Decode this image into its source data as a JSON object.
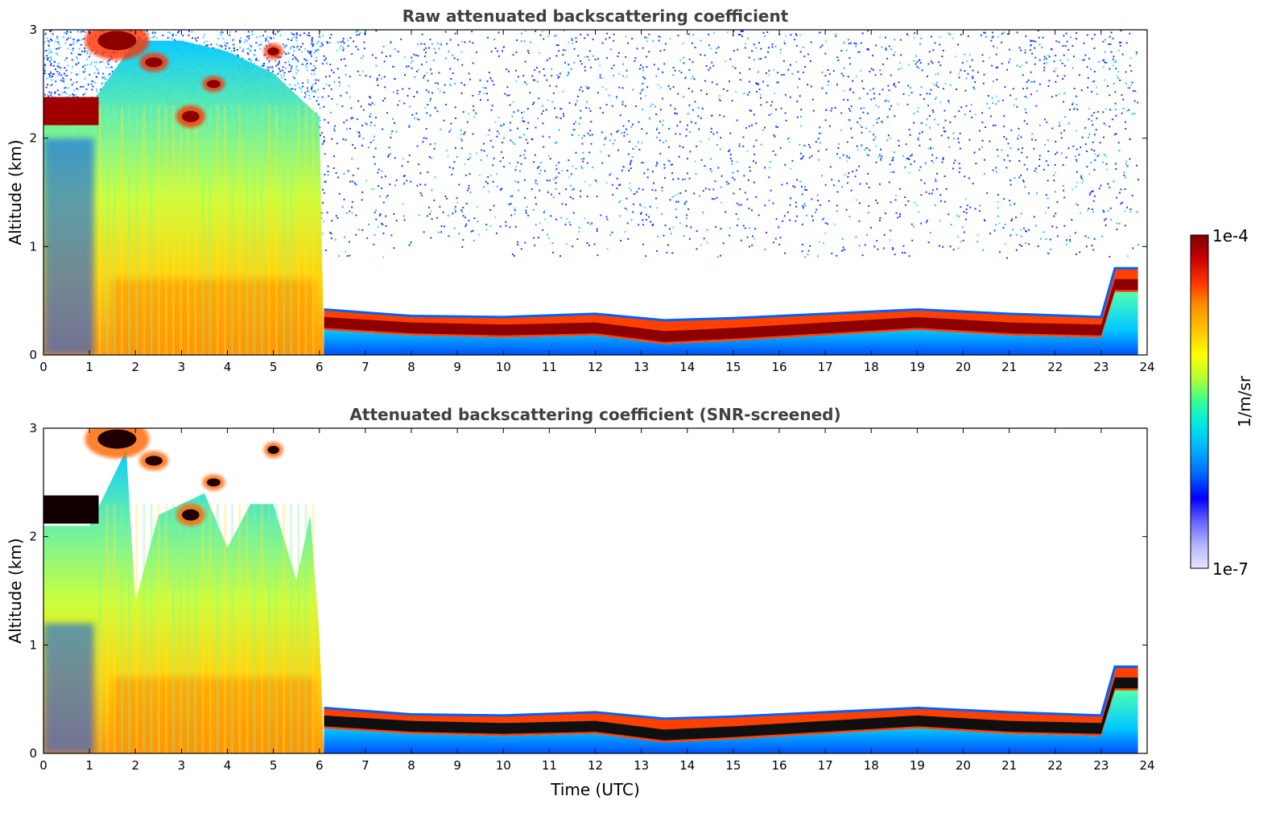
{
  "chart_data": [
    {
      "type": "heatmap",
      "title": "Raw attenuated backscattering coefficient",
      "xlabel": "",
      "ylabel": "Altitude (km)",
      "xlim": [
        0,
        24
      ],
      "ylim": [
        0,
        3
      ],
      "x_ticks": [
        "0",
        "1",
        "2",
        "3",
        "4",
        "5",
        "6",
        "7",
        "8",
        "9",
        "10",
        "11",
        "12",
        "13",
        "14",
        "15",
        "16",
        "17",
        "18",
        "19",
        "20",
        "21",
        "22",
        "23",
        "24"
      ],
      "y_ticks": [
        "0",
        "1",
        "2",
        "3"
      ],
      "layer_top_km": [
        [
          0,
          2.3
        ],
        [
          1,
          2.3
        ],
        [
          2,
          2.9
        ],
        [
          3,
          2.9
        ],
        [
          4,
          2.8
        ],
        [
          5,
          2.6
        ],
        [
          6,
          2.2
        ],
        [
          6.1,
          0.42
        ],
        [
          8,
          0.36
        ],
        [
          10,
          0.35
        ],
        [
          12,
          0.38
        ],
        [
          13.5,
          0.32
        ],
        [
          15,
          0.34
        ],
        [
          17,
          0.38
        ],
        [
          19,
          0.42
        ],
        [
          21,
          0.38
        ],
        [
          23,
          0.35
        ],
        [
          23.3,
          0.8
        ],
        [
          23.8,
          0.8
        ]
      ],
      "pbl_top_km": [
        [
          6.1,
          0.35
        ],
        [
          8,
          0.3
        ],
        [
          10,
          0.28
        ],
        [
          12,
          0.3
        ],
        [
          13.5,
          0.22
        ],
        [
          15,
          0.25
        ],
        [
          17,
          0.3
        ],
        [
          19,
          0.35
        ],
        [
          21,
          0.3
        ],
        [
          23,
          0.28
        ],
        [
          23.3,
          0.7
        ],
        [
          23.8,
          0.7
        ]
      ],
      "noise_above": true
    },
    {
      "type": "heatmap",
      "title": "Attenuated backscattering coefficient (SNR-screened)",
      "xlabel": "Time (UTC)",
      "ylabel": "Altitude (km)",
      "xlim": [
        0,
        24
      ],
      "ylim": [
        0,
        3
      ],
      "x_ticks": [
        "0",
        "1",
        "2",
        "3",
        "4",
        "5",
        "6",
        "7",
        "8",
        "9",
        "10",
        "11",
        "12",
        "13",
        "14",
        "15",
        "16",
        "17",
        "18",
        "19",
        "20",
        "21",
        "22",
        "23",
        "24"
      ],
      "y_ticks": [
        "0",
        "1",
        "2",
        "3"
      ],
      "layer_top_km": [
        [
          0,
          2.1
        ],
        [
          1,
          2.1
        ],
        [
          1.8,
          2.8
        ],
        [
          2,
          1.4
        ],
        [
          2.5,
          2.2
        ],
        [
          3,
          2.3
        ],
        [
          3.5,
          2.4
        ],
        [
          4,
          1.9
        ],
        [
          4.5,
          2.3
        ],
        [
          5,
          2.3
        ],
        [
          5.5,
          1.6
        ],
        [
          5.8,
          2.2
        ],
        [
          6,
          1.1
        ],
        [
          6.1,
          0.42
        ],
        [
          8,
          0.36
        ],
        [
          10,
          0.35
        ],
        [
          12,
          0.38
        ],
        [
          13.5,
          0.32
        ],
        [
          15,
          0.34
        ],
        [
          17,
          0.38
        ],
        [
          19,
          0.42
        ],
        [
          21,
          0.38
        ],
        [
          23,
          0.35
        ],
        [
          23.3,
          0.8
        ],
        [
          23.8,
          0.8
        ]
      ],
      "pbl_top_km": [
        [
          6.1,
          0.35
        ],
        [
          8,
          0.3
        ],
        [
          10,
          0.28
        ],
        [
          12,
          0.3
        ],
        [
          13.5,
          0.22
        ],
        [
          15,
          0.25
        ],
        [
          17,
          0.3
        ],
        [
          19,
          0.35
        ],
        [
          21,
          0.3
        ],
        [
          23,
          0.28
        ],
        [
          23.3,
          0.7
        ],
        [
          23.8,
          0.7
        ]
      ],
      "noise_above": false
    }
  ],
  "colorbar": {
    "label": "1/m/sr",
    "min_label": "1e-7",
    "max_label": "1e-4",
    "colors": [
      "#e6e6ff",
      "#b4b4ff",
      "#6464ff",
      "#0000ff",
      "#0064ff",
      "#00b4ff",
      "#00e6e6",
      "#32ff96",
      "#b4ff32",
      "#ffff00",
      "#ffc800",
      "#ff8c00",
      "#ff3200",
      "#c80000",
      "#800000"
    ]
  }
}
